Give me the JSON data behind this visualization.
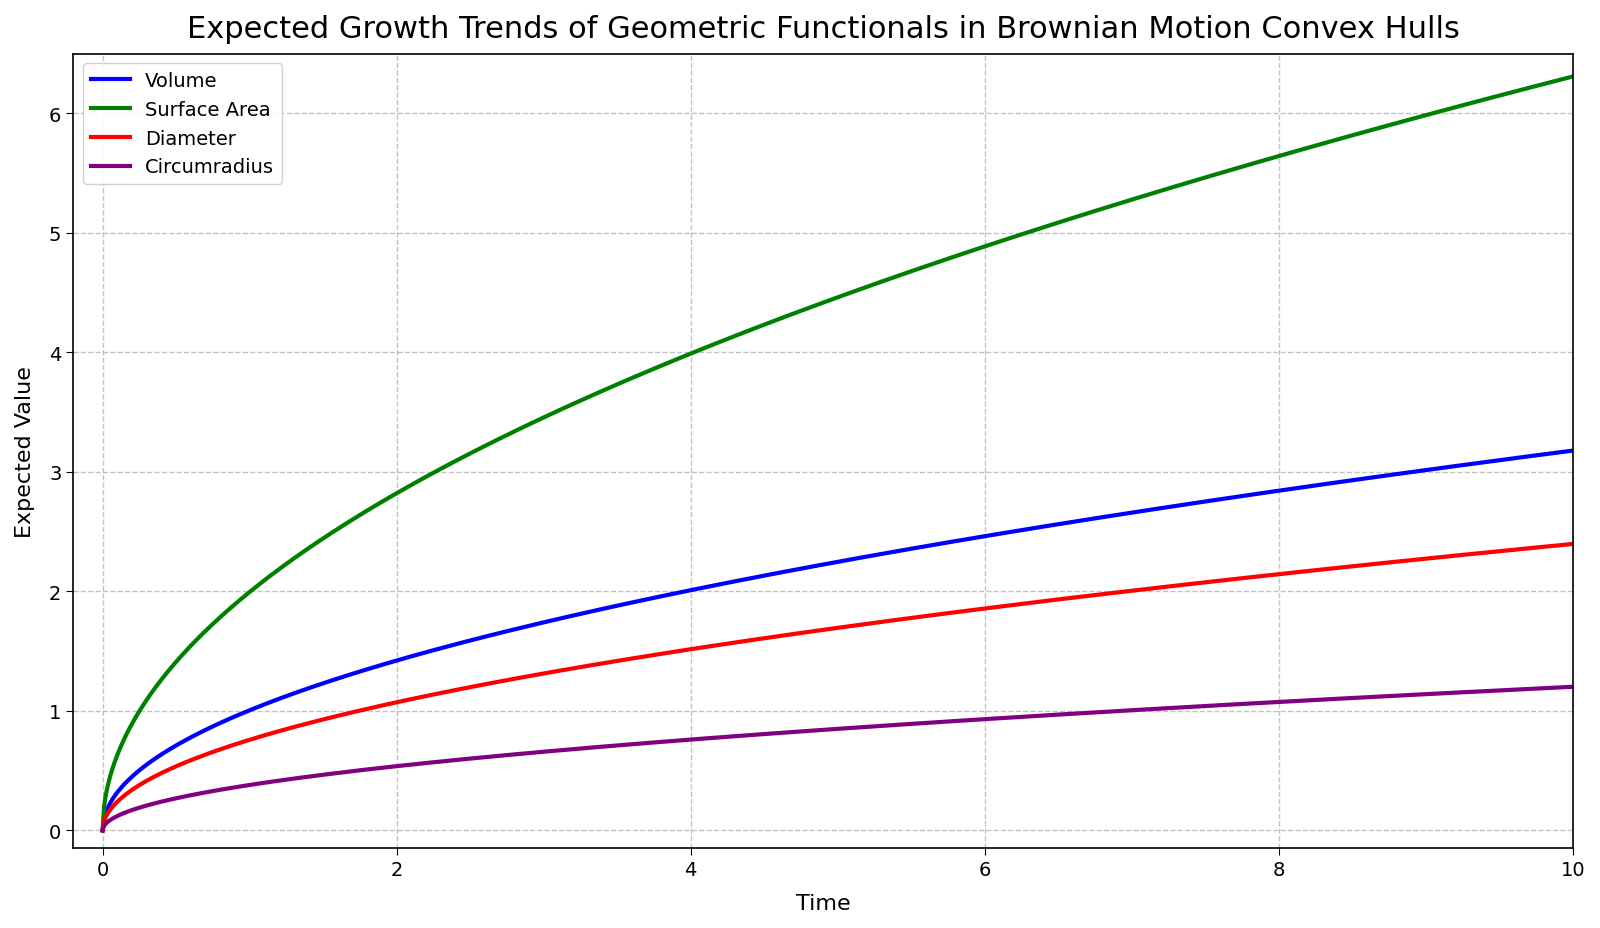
{
  "title": "Expected Growth Trends of Geometric Functionals in Brownian Motion Convex Hulls",
  "xlabel": "Time",
  "ylabel": "Expected Value",
  "xlim": [
    -0.2,
    10
  ],
  "ylim": [
    -0.15,
    6.5
  ],
  "t_start": 0.0001,
  "t_end": 10,
  "n_points": 1000,
  "series": [
    {
      "label": "Volume",
      "color": "#0000ff",
      "coefficient": 1.005,
      "exponent": 0.5
    },
    {
      "label": "Surface Area",
      "color": "#008000",
      "coefficient": 1.995,
      "exponent": 0.5
    },
    {
      "label": "Diameter",
      "color": "#ff0000",
      "coefficient": 0.758,
      "exponent": 0.5
    },
    {
      "label": "Circumradius",
      "color": "#800080",
      "coefficient": 0.38,
      "exponent": 0.5
    }
  ],
  "grid_color": "#aaaaaa",
  "grid_alpha": 0.7,
  "grid_linestyle": "--",
  "background_color": "#ffffff",
  "axes_facecolor": "#ffffff",
  "title_fontsize": 22,
  "label_fontsize": 16,
  "tick_fontsize": 14,
  "legend_fontsize": 14,
  "line_width": 3.0,
  "xticks": [
    0,
    2,
    4,
    6,
    8,
    10
  ],
  "yticks": [
    0,
    1,
    2,
    3,
    4,
    5,
    6
  ],
  "spine_color": "#000000",
  "legend_loc": "upper left",
  "legend_framealpha": 0.9
}
